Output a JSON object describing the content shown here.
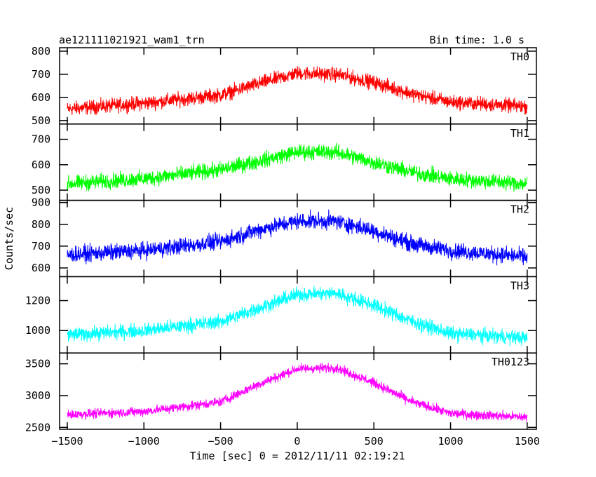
{
  "chart_data": {
    "type": "line",
    "title": "ae121111021921_wam1_trn",
    "subtitle": "Bin time: 1.0 s",
    "xlabel": "Time [sec] 0 = 2012/11/11 02:19:21",
    "ylabel": "Counts/sec",
    "xlim": [
      -1550,
      1560
    ],
    "x_ticks": [
      -1500,
      -1000,
      -500,
      0,
      500,
      1000,
      1500
    ],
    "x_tick_labels": [
      "−1500",
      "−1000",
      "−500",
      "0",
      "500",
      "1000",
      "1500"
    ],
    "grid": false,
    "series": [
      {
        "name": "TH0",
        "color": "#ff0000",
        "ylim": [
          485,
          815
        ],
        "y_ticks": [
          500,
          600,
          700,
          800
        ],
        "y_tick_labels": [
          "500",
          "600",
          "700",
          "800"
        ],
        "x": [
          -1500,
          -1000,
          -500,
          -250,
          0,
          250,
          500,
          750,
          1000,
          1500
        ],
        "y": [
          550,
          575,
          610,
          660,
          705,
          700,
          665,
          615,
          580,
          560
        ],
        "spread": 45
      },
      {
        "name": "TH1",
        "color": "#00ff00",
        "ylim": [
          460,
          760
        ],
        "y_ticks": [
          500,
          600,
          700
        ],
        "y_tick_labels": [
          "500",
          "600",
          "700"
        ],
        "x": [
          -1500,
          -1000,
          -500,
          -250,
          0,
          250,
          500,
          750,
          1000,
          1500
        ],
        "y": [
          525,
          545,
          580,
          615,
          650,
          650,
          610,
          570,
          545,
          525
        ],
        "spread": 45
      },
      {
        "name": "TH2",
        "color": "#0000ff",
        "ylim": [
          560,
          910
        ],
        "y_ticks": [
          600,
          700,
          800,
          900
        ],
        "y_tick_labels": [
          "600",
          "700",
          "800",
          "900"
        ],
        "x": [
          -1500,
          -1000,
          -500,
          -250,
          0,
          250,
          500,
          750,
          1000,
          1500
        ],
        "y": [
          660,
          680,
          720,
          775,
          815,
          815,
          770,
          710,
          680,
          650
        ],
        "spread": 55
      },
      {
        "name": "TH3",
        "color": "#00ffff",
        "ylim": [
          850,
          1360
        ],
        "y_ticks": [
          1000,
          1200
        ],
        "y_tick_labels": [
          "1000",
          "1200"
        ],
        "x": [
          -1500,
          -1000,
          -500,
          -250,
          0,
          250,
          500,
          750,
          1000,
          1500
        ],
        "y": [
          970,
          1000,
          1060,
          1150,
          1240,
          1250,
          1170,
          1060,
          980,
          950
        ],
        "spread": 70
      },
      {
        "name": "TH0123",
        "color": "#ff00ff",
        "ylim": [
          2470,
          3670
        ],
        "y_ticks": [
          2500,
          3000,
          3500
        ],
        "y_tick_labels": [
          "2500",
          "3000",
          "3500"
        ],
        "x": [
          -1500,
          -1000,
          -500,
          -250,
          0,
          250,
          500,
          750,
          1000,
          1500
        ],
        "y": [
          2700,
          2750,
          2900,
          3180,
          3420,
          3440,
          3200,
          2900,
          2720,
          2660
        ],
        "spread": 110
      }
    ]
  }
}
